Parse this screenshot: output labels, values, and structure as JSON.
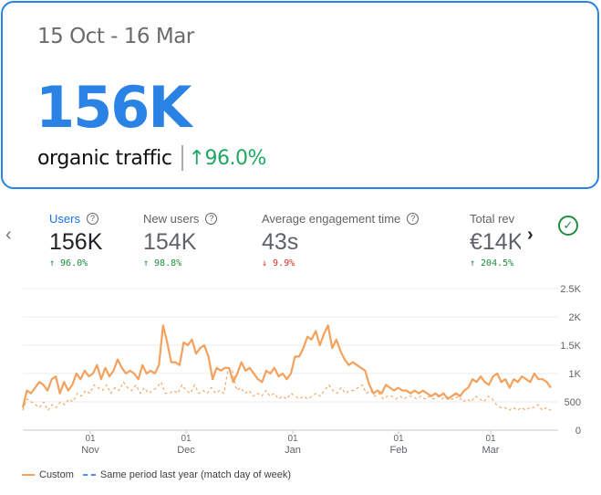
{
  "summary": {
    "date_range": "15 Oct - 16 Mar",
    "value": "156K",
    "label": "organic traffic",
    "change": "↑96.0%"
  },
  "metrics": [
    {
      "title": "Users",
      "value": "156K",
      "change": "↑ 96.0%",
      "direction": "up",
      "selected": true
    },
    {
      "title": "New users",
      "value": "154K",
      "change": "↑ 98.8%",
      "direction": "up",
      "selected": false
    },
    {
      "title": "Average engagement time",
      "value": "43s",
      "change": "↓ 9.9%",
      "direction": "down",
      "selected": false
    },
    {
      "title": "Total rev",
      "value": "€14K",
      "change": "↑ 204.5%",
      "direction": "up",
      "selected": false
    }
  ],
  "icons": {
    "prev": "chevron-left-icon",
    "next": "chevron-right-icon",
    "status": "check-circle-icon",
    "help": "help-circle-icon"
  },
  "colors": {
    "accent": "#2a82e4",
    "positive": "#1e8e3e",
    "negative": "#d93025",
    "series_custom": "#f4a15d",
    "series_last_year": "#f4a15d"
  },
  "legend": {
    "custom": "Custom",
    "last_year": "Same period last year (match day of week)"
  },
  "chart_data": {
    "type": "line",
    "y_ticks": [
      "2.5K",
      "2K",
      "1.5K",
      "1K",
      "500",
      "0"
    ],
    "ylim": [
      0,
      2500
    ],
    "x_ticks": [
      {
        "day": "01",
        "month": "Nov"
      },
      {
        "day": "01",
        "month": "Dec"
      },
      {
        "day": "01",
        "month": "Jan"
      },
      {
        "day": "01",
        "month": "Feb"
      },
      {
        "day": "01",
        "month": "Mar"
      }
    ],
    "grid": true,
    "series": [
      {
        "name": "Custom",
        "style": "solid",
        "values": [
          400,
          700,
          650,
          750,
          850,
          800,
          700,
          900,
          950,
          650,
          850,
          700,
          800,
          1000,
          900,
          1050,
          950,
          1000,
          1150,
          900,
          1100,
          950,
          1050,
          1250,
          1100,
          1000,
          1050,
          1000,
          900,
          1150,
          1000,
          1050,
          1000,
          1150,
          1850,
          1550,
          1200,
          1200,
          1150,
          1550,
          1500,
          1600,
          1350,
          1450,
          1500,
          1300,
          900,
          1100,
          1050,
          1100,
          1100,
          850,
          1000,
          1200,
          1050,
          1100,
          1000,
          900,
          850,
          1050,
          1000,
          1100,
          950,
          1000,
          900,
          1000,
          1300,
          1300,
          1450,
          1650,
          1600,
          1750,
          1500,
          1700,
          1850,
          1450,
          1600,
          1400,
          1250,
          1150,
          1200,
          1150,
          1100,
          1050,
          800,
          650,
          700,
          650,
          800,
          750,
          700,
          750,
          700,
          700,
          650,
          700,
          650,
          700,
          650,
          600,
          650,
          600,
          650,
          550,
          600,
          650,
          600,
          700,
          750,
          900,
          850,
          950,
          850,
          800,
          950,
          1000,
          850,
          900,
          750,
          900,
          850,
          950,
          900,
          850,
          1000,
          900,
          900,
          850,
          750
        ]
      },
      {
        "name": "Same period last year (match day of week)",
        "style": "dashed",
        "values": [
          350,
          550,
          500,
          450,
          400,
          500,
          350,
          450,
          400,
          500,
          450,
          550,
          500,
          650,
          600,
          700,
          650,
          800,
          750,
          700,
          800,
          650,
          750,
          700,
          850,
          750,
          700,
          800,
          650,
          750,
          650,
          700,
          750,
          850,
          650,
          650,
          700,
          650,
          800,
          700,
          650,
          800,
          650,
          700,
          650,
          750,
          650,
          700,
          650,
          1100,
          1050,
          700,
          750,
          650,
          700,
          600,
          650,
          600,
          700,
          600,
          650,
          550,
          600,
          550,
          650,
          600,
          550,
          600,
          550,
          600,
          650,
          600,
          700,
          800,
          700,
          650,
          750,
          650,
          700,
          700,
          750,
          800,
          650,
          700,
          600,
          650,
          550,
          600,
          600,
          550,
          600,
          550,
          600,
          600,
          550,
          600,
          550,
          600,
          550,
          600,
          550,
          600,
          550,
          550,
          600,
          500,
          550,
          500,
          600,
          550,
          500,
          600,
          550,
          450,
          400,
          400,
          350,
          400,
          350,
          400,
          350,
          400,
          400,
          450,
          350,
          400,
          350
        ]
      }
    ]
  }
}
